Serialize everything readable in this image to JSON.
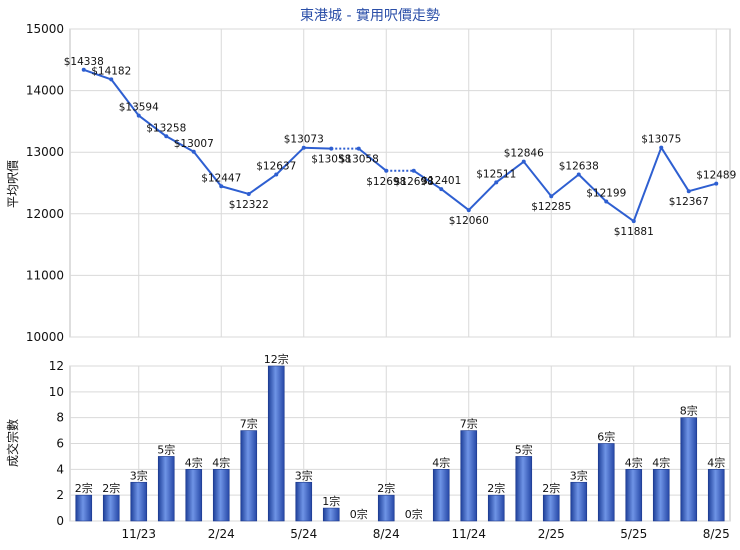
{
  "chart_data": [
    {
      "type": "line",
      "title": "東港城 - 實用呎價走勢",
      "ylabel": "平均呎價",
      "ylim": [
        10000,
        15000
      ],
      "yticks": [
        10000,
        11000,
        12000,
        13000,
        14000,
        15000
      ],
      "series": [
        {
          "values": [
            14338,
            14182,
            13594,
            13258,
            13007,
            12447,
            12322,
            12637,
            13073,
            13058,
            13058,
            12698,
            12698,
            12401,
            12060,
            12511,
            12846,
            12285,
            12638,
            12199,
            11881,
            13075,
            12367,
            12489
          ],
          "labels": [
            "$14338",
            "$14182",
            "$13594",
            "$13258",
            "$13007",
            "$12447",
            "$12322",
            "$12637",
            "$13073",
            "$13058",
            "$13058",
            "$12698",
            "$12698",
            "$12401",
            "$12060",
            "$12511",
            "$12846",
            "$12285",
            "$12638",
            "$12199",
            "$11881",
            "$13075",
            "$12367",
            "$12489"
          ],
          "color": "#2e5fd1"
        }
      ],
      "grid": true
    },
    {
      "type": "bar",
      "ylabel": "成交宗數",
      "ylim": [
        0,
        12
      ],
      "yticks": [
        0,
        2,
        4,
        6,
        8,
        10,
        12
      ],
      "values": [
        2,
        2,
        3,
        5,
        4,
        4,
        7,
        12,
        3,
        1,
        0,
        2,
        0,
        4,
        7,
        2,
        5,
        2,
        3,
        6,
        4,
        4,
        8,
        4
      ],
      "labels": [
        "2宗",
        "2宗",
        "3宗",
        "5宗",
        "4宗",
        "4宗",
        "7宗",
        "12宗",
        "3宗",
        "1宗",
        "0宗",
        "2宗",
        "0宗",
        "4宗",
        "7宗",
        "2宗",
        "5宗",
        "2宗",
        "3宗",
        "6宗",
        "4宗",
        "4宗",
        "8宗",
        "4宗"
      ],
      "xticks": [
        {
          "index": 2,
          "label": "11/23"
        },
        {
          "index": 5,
          "label": "2/24"
        },
        {
          "index": 8,
          "label": "5/24"
        },
        {
          "index": 11,
          "label": "8/24"
        },
        {
          "index": 14,
          "label": "11/24"
        },
        {
          "index": 17,
          "label": "2/25"
        },
        {
          "index": 20,
          "label": "5/25"
        },
        {
          "index": 23,
          "label": "8/25"
        }
      ],
      "color": "#3a67c9",
      "grid": true
    }
  ]
}
